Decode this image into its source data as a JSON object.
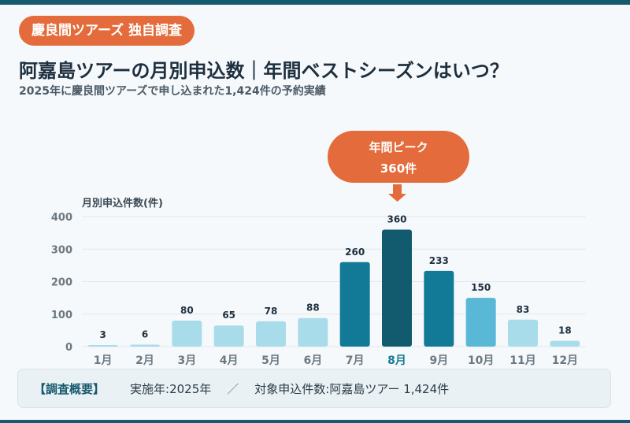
{
  "badge": "慶良間ツアーズ 独自調査",
  "title": "阿嘉島ツアーの月別申込数｜年間ベストシーズンはいつ？",
  "subtitle": "2025年に慶良間ツアーズで申し込まれた1,424件の予約実績",
  "peak_callout": {
    "line1": "年間ピーク",
    "line2": "360件"
  },
  "summary": {
    "label": "【調査概要】",
    "year": "実施年:2025年",
    "separator": "／",
    "target": "対象申込件数:阿嘉島ツアー 1,424件"
  },
  "colors": {
    "accent": "#e46b3b",
    "low": "#a9dcea",
    "high": "#127a96",
    "peak": "#125a6e",
    "mid": "#58b8d6",
    "grid": "#e2e8ec",
    "axis_text": "#6b7882"
  },
  "chart_data": {
    "type": "bar",
    "ylabel": "月別申込件数(件)",
    "ylim": [
      0,
      400
    ],
    "yticks": [
      0,
      100,
      200,
      300,
      400
    ],
    "categories": [
      "1月",
      "2月",
      "3月",
      "4月",
      "5月",
      "6月",
      "7月",
      "8月",
      "9月",
      "10月",
      "11月",
      "12月"
    ],
    "values": [
      3,
      6,
      80,
      65,
      78,
      88,
      260,
      360,
      233,
      150,
      83,
      18
    ],
    "bar_color_keys": [
      "low",
      "low",
      "low",
      "low",
      "low",
      "low",
      "high",
      "peak",
      "high",
      "mid",
      "low",
      "low"
    ],
    "highlight_category": "8月",
    "grid": true
  }
}
